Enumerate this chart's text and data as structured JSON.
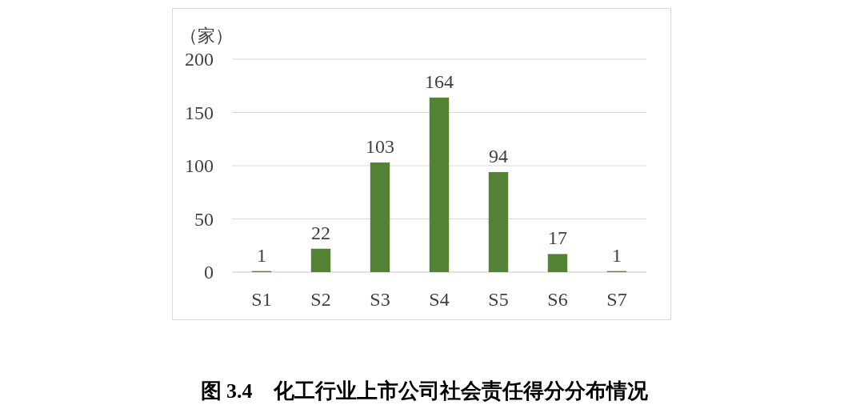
{
  "chart_data": {
    "type": "bar",
    "title": "图 3.4　化工行业上市公司社会责任得分分布情况",
    "ylabel": "（家）",
    "categories": [
      "S1",
      "S2",
      "S3",
      "S4",
      "S5",
      "S6",
      "S7"
    ],
    "values": [
      1,
      22,
      103,
      164,
      94,
      17,
      1
    ],
    "color": "#548235",
    "ylim": [
      0,
      200
    ],
    "yticks": [
      0,
      50,
      100,
      150,
      200
    ],
    "grid": "y",
    "data_labels": true
  }
}
